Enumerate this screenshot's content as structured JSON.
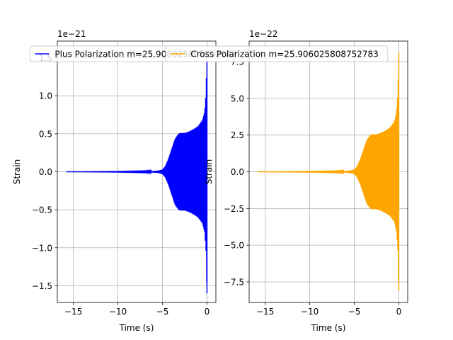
{
  "chart_data": [
    {
      "type": "line",
      "title": "",
      "xlabel": "Time (s)",
      "ylabel": "Strain",
      "y_exponent_label": "1e−21",
      "xlim": [
        -16.8,
        1.0
      ],
      "ylim": [
        -1.72,
        1.72
      ],
      "x_ticks": [
        -15,
        -10,
        -5,
        0
      ],
      "x_tick_labels": [
        "−15",
        "−10",
        "−5",
        "0"
      ],
      "y_ticks": [
        -1.5,
        -1.0,
        -0.5,
        0.0,
        0.5,
        1.0,
        1.5
      ],
      "y_tick_labels": [
        "−1.5",
        "−1.0",
        "−0.5",
        "0.0",
        "0.5",
        "1.0",
        "1.5"
      ],
      "grid": true,
      "legend_position": "top-center",
      "series": [
        {
          "name": "Plus Polarization m=25.906025808752783",
          "color": "#0000ff",
          "envelope": {
            "t": [
              -15.8,
              -10,
              -7,
              -6,
              -5.5,
              -5,
              -4.7,
              -4.3,
              -4.0,
              -3.6,
              -3.2,
              -3.0,
              -2.5,
              -2.0,
              -1.5,
              -1.0,
              -0.5,
              -0.25,
              -0.1,
              0.0
            ],
            "amplitude": [
              0.0,
              0.003,
              0.006,
              0.01,
              0.015,
              0.03,
              0.07,
              0.18,
              0.29,
              0.43,
              0.5,
              0.51,
              0.51,
              0.53,
              0.56,
              0.6,
              0.68,
              0.8,
              1.05,
              1.6
            ]
          }
        }
      ]
    },
    {
      "type": "line",
      "title": "",
      "xlabel": "Time (s)",
      "ylabel": "Strain",
      "y_exponent_label": "1e−22",
      "xlim": [
        -16.8,
        1.0
      ],
      "ylim": [
        -8.9,
        8.9
      ],
      "x_ticks": [
        -15,
        -10,
        -5,
        0
      ],
      "x_tick_labels": [
        "−15",
        "−10",
        "−5",
        "0"
      ],
      "y_ticks": [
        -7.5,
        -5.0,
        -2.5,
        0.0,
        2.5,
        5.0,
        7.5
      ],
      "y_tick_labels": [
        "−7.5",
        "−5.0",
        "−2.5",
        "0.0",
        "2.5",
        "5.0",
        "7.5"
      ],
      "grid": true,
      "legend_position": "top-center",
      "series": [
        {
          "name": "Cross Polarization m=25.906025808752783",
          "color": "#ffa500",
          "envelope": {
            "t": [
              -15.8,
              -10,
              -7,
              -6,
              -5.5,
              -5,
              -4.7,
              -4.3,
              -4.0,
              -3.6,
              -3.2,
              -3.0,
              -2.5,
              -2.0,
              -1.5,
              -1.0,
              -0.5,
              -0.25,
              -0.1,
              0.0
            ],
            "amplitude": [
              0.0,
              0.015,
              0.03,
              0.05,
              0.08,
              0.15,
              0.35,
              0.9,
              1.45,
              2.15,
              2.5,
              2.55,
              2.55,
              2.65,
              2.8,
              3.0,
              3.4,
              4.1,
              5.4,
              8.1
            ]
          }
        }
      ]
    }
  ]
}
